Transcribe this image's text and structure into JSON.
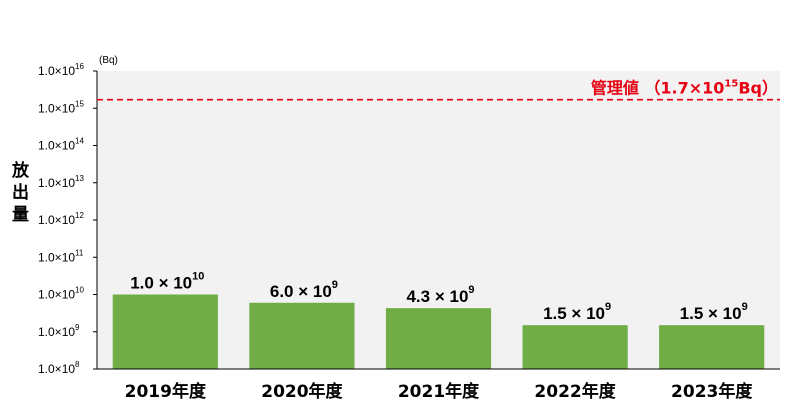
{
  "chart_data": {
    "type": "bar",
    "categories": [
      "2019年度",
      "2020年度",
      "2021年度",
      "2022年度",
      "2023年度"
    ],
    "values": [
      10000000000.0,
      6000000000.0,
      4300000000.0,
      1500000000.0,
      1500000000.0
    ],
    "value_labels": [
      {
        "mantissa": "1.0",
        "exponent": "10"
      },
      {
        "mantissa": "6.0",
        "exponent": "9"
      },
      {
        "mantissa": "4.3",
        "exponent": "9"
      },
      {
        "mantissa": "1.5",
        "exponent": "9"
      },
      {
        "mantissa": "1.5",
        "exponent": "9"
      }
    ],
    "ylabel": "放出量",
    "unit": "(Bq)",
    "y_scale": "log",
    "ylim": [
      100000000.0,
      1e+16
    ],
    "y_ticks": [
      {
        "base": "1.0×10",
        "exp": "8"
      },
      {
        "base": "1.0×10",
        "exp": "9"
      },
      {
        "base": "1.0×10",
        "exp": "10"
      },
      {
        "base": "1.0×10",
        "exp": "11"
      },
      {
        "base": "1.0×10",
        "exp": "12"
      },
      {
        "base": "1.0×10",
        "exp": "13"
      },
      {
        "base": "1.0×10",
        "exp": "14"
      },
      {
        "base": "1.0×10",
        "exp": "15"
      },
      {
        "base": "1.0×10",
        "exp": "16"
      }
    ],
    "reference_line": {
      "value": 1700000000000000.0,
      "label_prefix": "管理値 （1.7×10",
      "label_exp": "15",
      "label_suffix": "Bq）",
      "style": "dashed",
      "color": "#e60012"
    },
    "bar_color": "#70ad47",
    "plot_background": "#f2f2f2",
    "grid": false,
    "legend": "none"
  }
}
